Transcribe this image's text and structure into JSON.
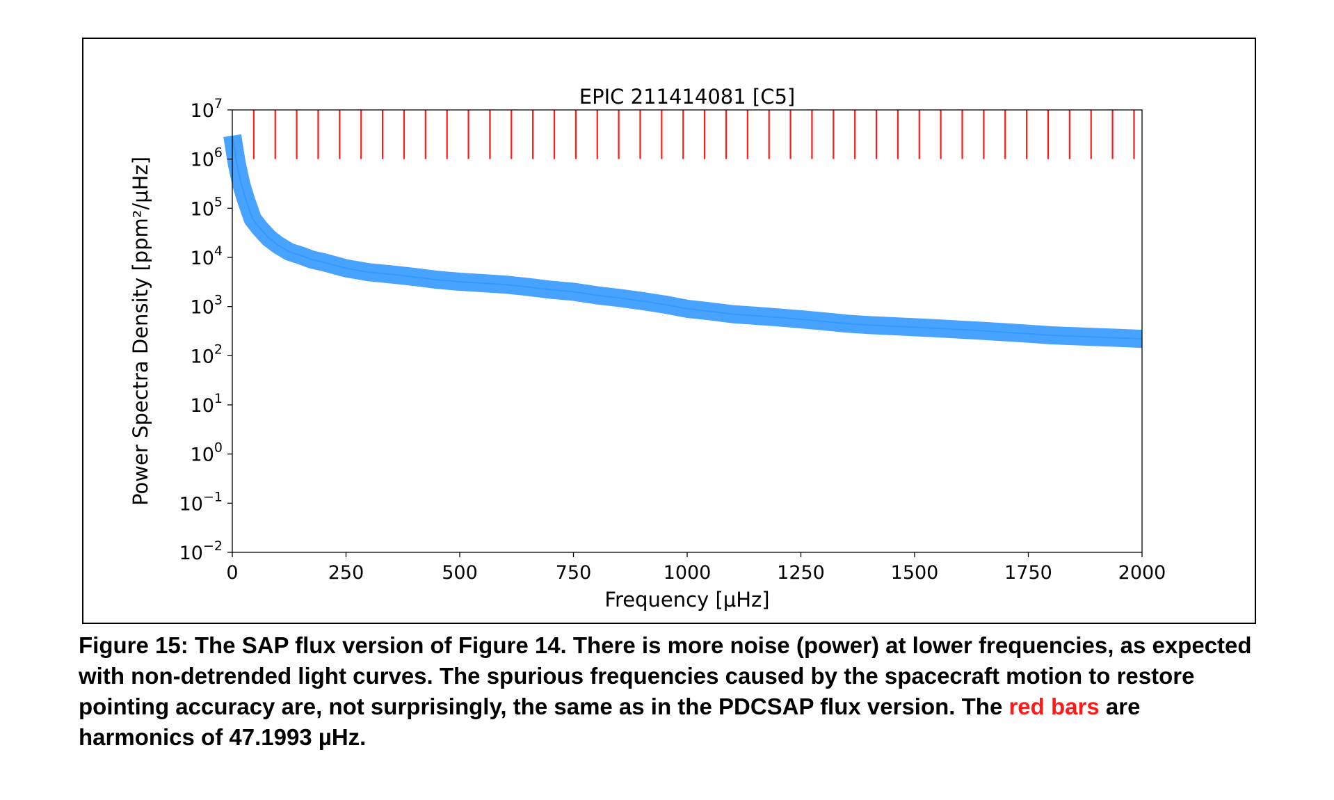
{
  "chart_data": {
    "type": "line",
    "title": "EPIC 211414081  [C5]",
    "xlabel": "Frequency  [μHz]",
    "ylabel": "Power Spectra Density  [ppm²/μHz]",
    "xlim": [
      0,
      2000
    ],
    "ylim": [
      0.01,
      10000000
    ],
    "yscale": "log",
    "x_ticks": [
      "0",
      "250",
      "500",
      "750",
      "1000",
      "1250",
      "1500",
      "1750",
      "2000"
    ],
    "y_ticks": [
      {
        "base": "10",
        "exp": "7"
      },
      {
        "base": "10",
        "exp": "6"
      },
      {
        "base": "10",
        "exp": "5"
      },
      {
        "base": "10",
        "exp": "4"
      },
      {
        "base": "10",
        "exp": "3"
      },
      {
        "base": "10",
        "exp": "2"
      },
      {
        "base": "10",
        "exp": "1"
      },
      {
        "base": "10",
        "exp": "0"
      },
      {
        "base": "10",
        "exp": "−1"
      },
      {
        "base": "10",
        "exp": "−2"
      }
    ],
    "grid": false,
    "series": [
      {
        "color": "#3399ff",
        "x": [
          0,
          10,
          20,
          30,
          45,
          60,
          80,
          100,
          125,
          150,
          175,
          200,
          250,
          300,
          350,
          400,
          450,
          500,
          550,
          600,
          650,
          700,
          750,
          800,
          850,
          900,
          950,
          1000,
          1050,
          1100,
          1150,
          1200,
          1250,
          1300,
          1350,
          1400,
          1450,
          1500,
          1550,
          1600,
          1650,
          1700,
          1750,
          1800,
          1850,
          1900,
          1950,
          2000
        ],
        "y": [
          3000000,
          800000,
          300000,
          150000,
          60000,
          40000,
          25000,
          18000,
          13000,
          11000,
          9000,
          8000,
          6000,
          5000,
          4500,
          4000,
          3500,
          3200,
          3000,
          2800,
          2500,
          2200,
          2000,
          1700,
          1500,
          1300,
          1100,
          900,
          800,
          700,
          650,
          600,
          550,
          500,
          450,
          420,
          400,
          380,
          360,
          340,
          320,
          300,
          280,
          260,
          250,
          240,
          230,
          220
        ]
      }
    ],
    "harmonics": {
      "color": "#ff1a1a",
      "fundamental": 47.1993,
      "count": 42,
      "y_range": [
        1000000,
        10000000
      ]
    }
  },
  "caption": {
    "part1": "Figure 15: The SAP flux version of Figure 14.  There is more noise (power) at lower frequencies, as expected with non-detrended light curves.  The spurious frequencies caused by the spacecraft motion to restore pointing accuracy are, not surprisingly, the same as in the PDCSAP flux version. The ",
    "highlight": "red bars",
    "part2": " are harmonics of 47.1993 µHz."
  }
}
